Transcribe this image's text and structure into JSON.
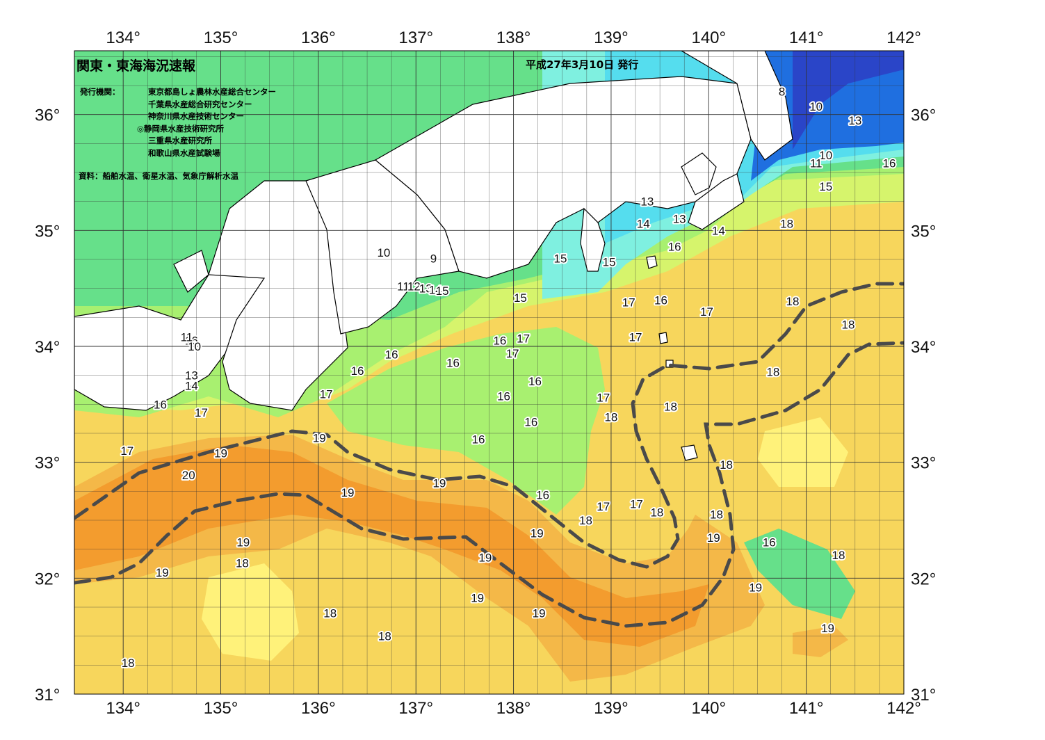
{
  "title": "関東・東海海況速報",
  "issue_date": "平成27年3月10日 発行",
  "agencies_label": "発行機関：",
  "agencies": [
    {
      "name": "東京都島しょ農林水産総合センター",
      "primary": false
    },
    {
      "name": "千葉県水産総合研究センター",
      "primary": false
    },
    {
      "name": "神奈川県水産技術センター",
      "primary": false
    },
    {
      "name": "◎静岡県水産技術研究所",
      "primary": true
    },
    {
      "name": "三重県水産研究所",
      "primary": false
    },
    {
      "name": "和歌山県水産試験場",
      "primary": false
    }
  ],
  "source": "資料：船舶水温、衛星水温、気象庁解析水温",
  "map": {
    "lon_range": [
      133.5,
      142
    ],
    "lat_range": [
      31,
      36.55
    ],
    "lon_ticks": [
      {
        "value": 134,
        "label": "134°"
      },
      {
        "value": 135,
        "label": "135°"
      },
      {
        "value": 136,
        "label": "136°"
      },
      {
        "value": 137,
        "label": "137°"
      },
      {
        "value": 138,
        "label": "138°"
      },
      {
        "value": 139,
        "label": "139°"
      },
      {
        "value": 140,
        "label": "140°"
      },
      {
        "value": 141,
        "label": "141°"
      },
      {
        "value": 142,
        "label": "142°"
      }
    ],
    "lat_ticks": [
      {
        "value": 31,
        "label": "31°"
      },
      {
        "value": 32,
        "label": "32°"
      },
      {
        "value": 33,
        "label": "33°"
      },
      {
        "value": 34,
        "label": "34°"
      },
      {
        "value": 35,
        "label": "35°"
      },
      {
        "value": 36,
        "label": "36°"
      }
    ],
    "colors": {
      "t8": "#2a45c8",
      "t10": "#1f6fe0",
      "t12": "#3399ee",
      "t13": "#55ddee",
      "t14": "#7ff0e0",
      "t15": "#66e08a",
      "t16": "#a8f070",
      "t17": "#d6f46c",
      "t18": "#f7d65c",
      "t19": "#f4b848",
      "t20": "#f39c2e",
      "t_yellow": "#fff27a",
      "land": "#ffffff",
      "coast": "#000000",
      "kuroshio_axis": "#4a4a4a"
    },
    "temperature_labels": [
      {
        "text": "8",
        "lon": 140.75,
        "lat": 36.2
      },
      {
        "text": "10",
        "lon": 141.1,
        "lat": 36.07
      },
      {
        "text": "13",
        "lon": 141.5,
        "lat": 35.95
      },
      {
        "text": "10",
        "lon": 141.2,
        "lat": 35.65
      },
      {
        "text": "11",
        "lon": 141.1,
        "lat": 35.58
      },
      {
        "text": "16",
        "lon": 141.85,
        "lat": 35.58
      },
      {
        "text": "15",
        "lon": 141.2,
        "lat": 35.38
      },
      {
        "text": "13",
        "lon": 139.37,
        "lat": 35.25
      },
      {
        "text": "14",
        "lon": 139.33,
        "lat": 35.06
      },
      {
        "text": "13",
        "lon": 139.7,
        "lat": 35.1
      },
      {
        "text": "14",
        "lon": 140.1,
        "lat": 35.0
      },
      {
        "text": "18",
        "lon": 140.8,
        "lat": 35.06
      },
      {
        "text": "16",
        "lon": 139.65,
        "lat": 34.86
      },
      {
        "text": "15",
        "lon": 138.48,
        "lat": 34.76
      },
      {
        "text": "15",
        "lon": 138.98,
        "lat": 34.73
      },
      {
        "text": "10",
        "lon": 136.67,
        "lat": 34.81
      },
      {
        "text": "9",
        "lon": 137.18,
        "lat": 34.76
      },
      {
        "text": "11",
        "lon": 136.87,
        "lat": 34.52
      },
      {
        "text": "12",
        "lon": 136.98,
        "lat": 34.52
      },
      {
        "text": "13",
        "lon": 137.1,
        "lat": 34.5
      },
      {
        "text": "14",
        "lon": 137.2,
        "lat": 34.49
      },
      {
        "text": "15",
        "lon": 137.27,
        "lat": 34.48
      },
      {
        "text": "15",
        "lon": 138.07,
        "lat": 34.42
      },
      {
        "text": "17",
        "lon": 139.18,
        "lat": 34.38
      },
      {
        "text": "16",
        "lon": 139.51,
        "lat": 34.4
      },
      {
        "text": "17",
        "lon": 139.98,
        "lat": 34.3
      },
      {
        "text": "18",
        "lon": 140.86,
        "lat": 34.39
      },
      {
        "text": "18",
        "lon": 141.43,
        "lat": 34.19
      },
      {
        "text": "17",
        "lon": 139.25,
        "lat": 34.08
      },
      {
        "text": "16",
        "lon": 137.86,
        "lat": 34.05
      },
      {
        "text": "17",
        "lon": 138.1,
        "lat": 34.07
      },
      {
        "text": "17",
        "lon": 137.99,
        "lat": 33.94
      },
      {
        "text": "16",
        "lon": 134.7,
        "lat": 34.05
      },
      {
        "text": "11",
        "lon": 134.65,
        "lat": 34.08
      },
      {
        "text": "10",
        "lon": 134.73,
        "lat": 34.0
      },
      {
        "text": "16",
        "lon": 136.75,
        "lat": 33.93
      },
      {
        "text": "16",
        "lon": 137.38,
        "lat": 33.86
      },
      {
        "text": "16",
        "lon": 136.4,
        "lat": 33.79
      },
      {
        "text": "18",
        "lon": 140.66,
        "lat": 33.78
      },
      {
        "text": "13",
        "lon": 134.7,
        "lat": 33.75
      },
      {
        "text": "14",
        "lon": 134.7,
        "lat": 33.66
      },
      {
        "text": "16",
        "lon": 138.22,
        "lat": 33.7
      },
      {
        "text": "16",
        "lon": 137.9,
        "lat": 33.57
      },
      {
        "text": "17",
        "lon": 138.92,
        "lat": 33.56
      },
      {
        "text": "17",
        "lon": 136.08,
        "lat": 33.59
      },
      {
        "text": "16",
        "lon": 134.38,
        "lat": 33.5
      },
      {
        "text": "18",
        "lon": 139.61,
        "lat": 33.48
      },
      {
        "text": "17",
        "lon": 134.8,
        "lat": 33.43
      },
      {
        "text": "18",
        "lon": 139.0,
        "lat": 33.39
      },
      {
        "text": "16",
        "lon": 138.18,
        "lat": 33.35
      },
      {
        "text": "19",
        "lon": 136.01,
        "lat": 33.21
      },
      {
        "text": "16",
        "lon": 137.64,
        "lat": 33.2
      },
      {
        "text": "17",
        "lon": 134.04,
        "lat": 33.1
      },
      {
        "text": "19",
        "lon": 135.0,
        "lat": 33.08
      },
      {
        "text": "18",
        "lon": 140.18,
        "lat": 32.98
      },
      {
        "text": "20",
        "lon": 134.67,
        "lat": 32.89
      },
      {
        "text": "19",
        "lon": 137.24,
        "lat": 32.82
      },
      {
        "text": "19",
        "lon": 136.3,
        "lat": 32.74
      },
      {
        "text": "16",
        "lon": 138.3,
        "lat": 32.72
      },
      {
        "text": "17",
        "lon": 138.92,
        "lat": 32.62
      },
      {
        "text": "17",
        "lon": 139.26,
        "lat": 32.64
      },
      {
        "text": "18",
        "lon": 139.47,
        "lat": 32.57
      },
      {
        "text": "18",
        "lon": 140.08,
        "lat": 32.55
      },
      {
        "text": "18",
        "lon": 138.74,
        "lat": 32.5
      },
      {
        "text": "19",
        "lon": 138.24,
        "lat": 32.39
      },
      {
        "text": "19",
        "lon": 140.05,
        "lat": 32.35
      },
      {
        "text": "16",
        "lon": 140.62,
        "lat": 32.31
      },
      {
        "text": "19",
        "lon": 135.23,
        "lat": 32.31
      },
      {
        "text": "18",
        "lon": 141.33,
        "lat": 32.2
      },
      {
        "text": "19",
        "lon": 137.71,
        "lat": 32.18
      },
      {
        "text": "18",
        "lon": 135.22,
        "lat": 32.13
      },
      {
        "text": "19",
        "lon": 134.4,
        "lat": 32.05
      },
      {
        "text": "19",
        "lon": 140.48,
        "lat": 31.92
      },
      {
        "text": "19",
        "lon": 137.63,
        "lat": 31.83
      },
      {
        "text": "18",
        "lon": 136.12,
        "lat": 31.7
      },
      {
        "text": "19",
        "lon": 138.26,
        "lat": 31.7
      },
      {
        "text": "19",
        "lon": 141.22,
        "lat": 31.57
      },
      {
        "text": "18",
        "lon": 136.68,
        "lat": 31.5
      },
      {
        "text": "18",
        "lon": 134.05,
        "lat": 31.27
      }
    ]
  }
}
